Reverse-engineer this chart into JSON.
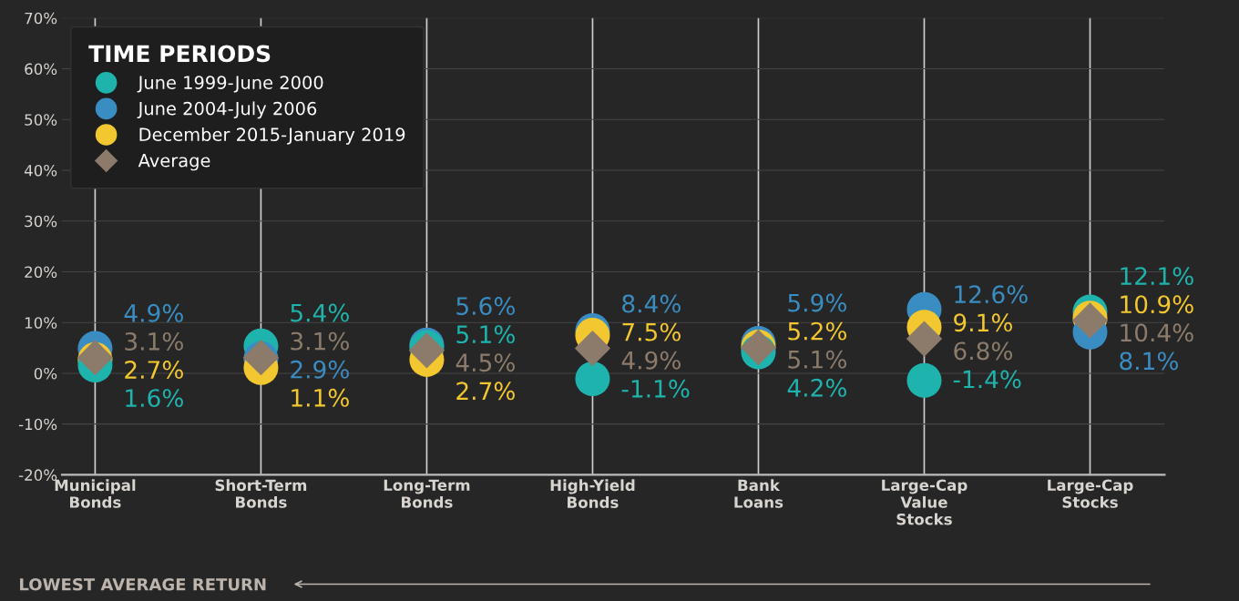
{
  "chart_data": {
    "type": "scatter",
    "categories": [
      "Municipal\nBonds",
      "Short-Term\nBonds",
      "Long-Term\nBonds",
      "High-Yield\nBonds",
      "Bank\nLoans",
      "Large-Cap\nValue\nStocks",
      "Large-Cap\nStocks"
    ],
    "series": [
      {
        "name": "June 1999-June 2000",
        "color": "#1fb3ad",
        "marker": "circle",
        "values": [
          1.6,
          5.4,
          5.1,
          -1.1,
          4.2,
          -1.4,
          12.1
        ],
        "value_labels": [
          "1.6%",
          "5.4%",
          "5.1%",
          "-1.1%",
          "4.2%",
          "-1.4%",
          "12.1%"
        ]
      },
      {
        "name": "June 2004-July 2006",
        "color": "#3a8dc2",
        "marker": "circle",
        "values": [
          4.9,
          2.9,
          5.6,
          8.4,
          5.9,
          12.6,
          8.1
        ],
        "value_labels": [
          "4.9%",
          "2.9%",
          "5.6%",
          "8.4%",
          "5.9%",
          "12.6%",
          "8.1%"
        ]
      },
      {
        "name": "December 2015-January 2019",
        "color": "#f2c72f",
        "marker": "circle",
        "values": [
          2.7,
          1.1,
          2.7,
          7.5,
          5.2,
          9.1,
          10.9
        ],
        "value_labels": [
          "2.7%",
          "1.1%",
          "2.7%",
          "7.5%",
          "5.2%",
          "9.1%",
          "10.9%"
        ]
      },
      {
        "name": "Average",
        "color": "#8c7b6b",
        "marker": "diamond",
        "values": [
          3.1,
          3.1,
          4.5,
          4.9,
          5.1,
          6.8,
          10.4
        ],
        "value_labels": [
          "3.1%",
          "3.1%",
          "4.5%",
          "4.9%",
          "5.1%",
          "6.8%",
          "10.4%"
        ]
      }
    ],
    "ylim": [
      -20,
      70
    ],
    "yticks": [
      {
        "value": -20,
        "label": "-20%"
      },
      {
        "value": -10,
        "label": "-10%"
      },
      {
        "value": 0,
        "label": "0%"
      },
      {
        "value": 10,
        "label": "10%"
      },
      {
        "value": 20,
        "label": "20%"
      },
      {
        "value": 30,
        "label": "30%"
      },
      {
        "value": 40,
        "label": "40%"
      },
      {
        "value": 50,
        "label": "50%"
      },
      {
        "value": 60,
        "label": "60%"
      },
      {
        "value": 70,
        "label": "70%"
      }
    ],
    "grid": true,
    "legend": "top left",
    "legend_title": "TIME PERIODS",
    "annotations": [
      "LOWEST AVERAGE RETURN"
    ]
  }
}
